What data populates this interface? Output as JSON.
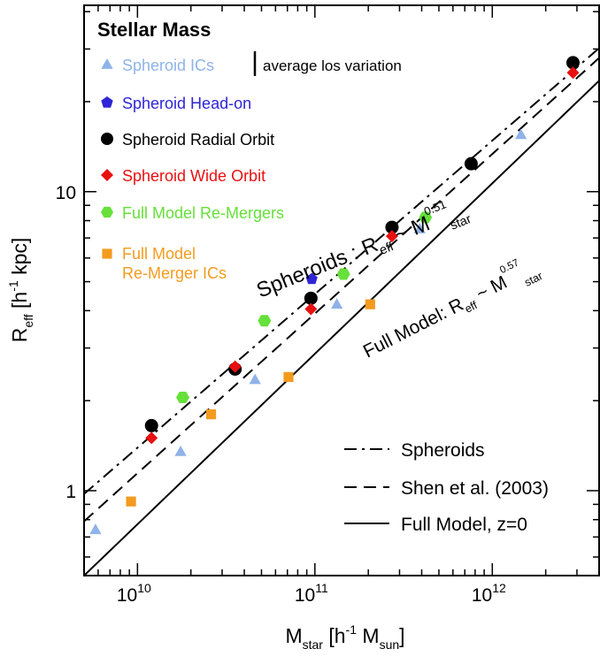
{
  "chart_data": {
    "type": "scatter",
    "title": "Stellar Mass",
    "xscale": "log",
    "yscale": "log",
    "xlim": [
      5000000000.0,
      4000000000000.0
    ],
    "ylim": [
      0.52,
      42
    ],
    "x_ticks": [
      {
        "value": 10000000000.0,
        "base": "10",
        "exp": "10"
      },
      {
        "value": 100000000000.0,
        "base": "10",
        "exp": "11"
      },
      {
        "value": 1000000000000.0,
        "base": "10",
        "exp": "12"
      }
    ],
    "y_ticks": [
      {
        "value": 1,
        "label": "1"
      },
      {
        "value": 10,
        "label": "10"
      }
    ],
    "xlabel": {
      "main": "M",
      "sub": "star",
      "mid": " [h",
      "sup": "-1",
      "mid2": " M",
      "sub2": "sun",
      "end": "]"
    },
    "ylabel": {
      "main": "R",
      "sub": "eff",
      "mid": " [h",
      "sup": "-1",
      "end": " kpc]"
    },
    "grid": false,
    "series": [
      {
        "name": "Spheroid ICs",
        "marker": "triangle",
        "color": "#8fb3e8",
        "points": [
          [
            5800000000.0,
            0.74
          ],
          [
            17500000000.0,
            1.35
          ],
          [
            46000000000.0,
            2.35
          ],
          [
            133000000000.0,
            4.2
          ],
          [
            390000000000.0,
            7.5
          ],
          [
            1450000000000.0,
            15.5
          ]
        ]
      },
      {
        "name": "Spheroid Head-on",
        "marker": "pentagon",
        "color": "#2f25d6",
        "points": [
          [
            96000000000.0,
            5.1
          ]
        ]
      },
      {
        "name": "Spheroid Radial Orbit",
        "marker": "circle",
        "color": "#000000",
        "points": [
          [
            12000000000.0,
            1.65
          ],
          [
            35500000000.0,
            2.55
          ],
          [
            95000000000.0,
            4.4
          ],
          [
            272000000000.0,
            7.6
          ],
          [
            760000000000.0,
            12.4
          ],
          [
            2850000000000.0,
            27.0
          ]
        ]
      },
      {
        "name": "Spheroid Wide Orbit",
        "marker": "diamond",
        "color": "#e81010",
        "points": [
          [
            12000000000.0,
            1.5
          ],
          [
            35500000000.0,
            2.6
          ],
          [
            95000000000.0,
            4.05
          ],
          [
            272000000000.0,
            7.1
          ],
          [
            2850000000000.0,
            25.0
          ]
        ]
      },
      {
        "name": "Full Model Re-Mergers",
        "marker": "hexagon",
        "color": "#66e03a",
        "points": [
          [
            18000000000.0,
            2.05
          ],
          [
            52000000000.0,
            3.7
          ],
          [
            145000000000.0,
            5.3
          ],
          [
            420000000000.0,
            8.2
          ]
        ]
      },
      {
        "name": "Full Model Re-Merger ICs",
        "marker": "square",
        "color": "#f39b1f",
        "points": [
          [
            9200000000.0,
            0.92
          ],
          [
            26000000000.0,
            1.8
          ],
          [
            71000000000.0,
            2.4
          ],
          [
            205000000000.0,
            4.2
          ]
        ]
      }
    ],
    "error_bar_label": "average los variation",
    "fit_lines": [
      {
        "name": "Spheroids",
        "style": "dashdot",
        "points": [
          [
            5000000000.0,
            0.975
          ],
          [
            4000000000000.0,
            30.2
          ]
        ]
      },
      {
        "name": "Shen et al. (2003)",
        "style": "dashed",
        "points": [
          [
            5000000000.0,
            0.79
          ],
          [
            4000000000000.0,
            28.0
          ]
        ]
      },
      {
        "name": "Full Model, z=0",
        "style": "solid",
        "points": [
          [
            5000000000.0,
            0.52
          ],
          [
            4000000000000.0,
            23.5
          ]
        ]
      }
    ],
    "annotations": {
      "spheroids": {
        "pre": "Spheroids : R",
        "sub": "eff",
        "mid": " ~ M",
        "sup": "0.51",
        "sub2": "star"
      },
      "full_model": {
        "pre": "Full Model: R",
        "sub": "eff",
        "mid": " ~ M",
        "sup": "0.57",
        "sub2": "star"
      }
    }
  }
}
